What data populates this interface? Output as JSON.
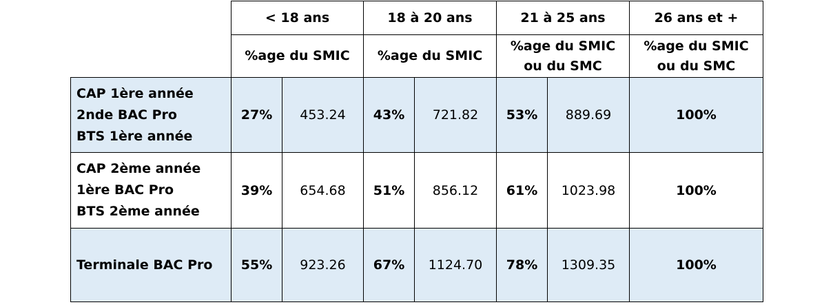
{
  "header": {
    "age_groups": [
      "< 18 ans",
      "18 à 20 ans",
      "21 à 25 ans",
      "26 ans et +"
    ],
    "subheaders": [
      [
        "%age du SMIC"
      ],
      [
        "%age du SMIC"
      ],
      [
        "%age du SMIC",
        "ou du SMC"
      ],
      [
        "%age du SMIC",
        "ou du SMC"
      ]
    ]
  },
  "rows": [
    {
      "labels": [
        "CAP 1ère année",
        "2nde BAC Pro",
        "BTS 1ère année"
      ],
      "values": [
        {
          "pct": "27%",
          "amount": "453.24"
        },
        {
          "pct": "43%",
          "amount": "721.82"
        },
        {
          "pct": "53%",
          "amount": "889.69"
        }
      ],
      "last": "100%"
    },
    {
      "labels": [
        "CAP 2ème année",
        "1ère BAC Pro",
        "BTS 2ème année"
      ],
      "values": [
        {
          "pct": "39%",
          "amount": "654.68"
        },
        {
          "pct": "51%",
          "amount": "856.12"
        },
        {
          "pct": "61%",
          "amount": "1023.98"
        }
      ],
      "last": "100%"
    },
    {
      "labels": [
        "Terminale BAC Pro"
      ],
      "values": [
        {
          "pct": "55%",
          "amount": "923.26"
        },
        {
          "pct": "67%",
          "amount": "1124.70"
        },
        {
          "pct": "78%",
          "amount": "1309.35"
        }
      ],
      "last": "100%"
    }
  ],
  "colors": {
    "shaded_row": "#deebf6",
    "plain_row": "#ffffff",
    "border": "#000000"
  }
}
